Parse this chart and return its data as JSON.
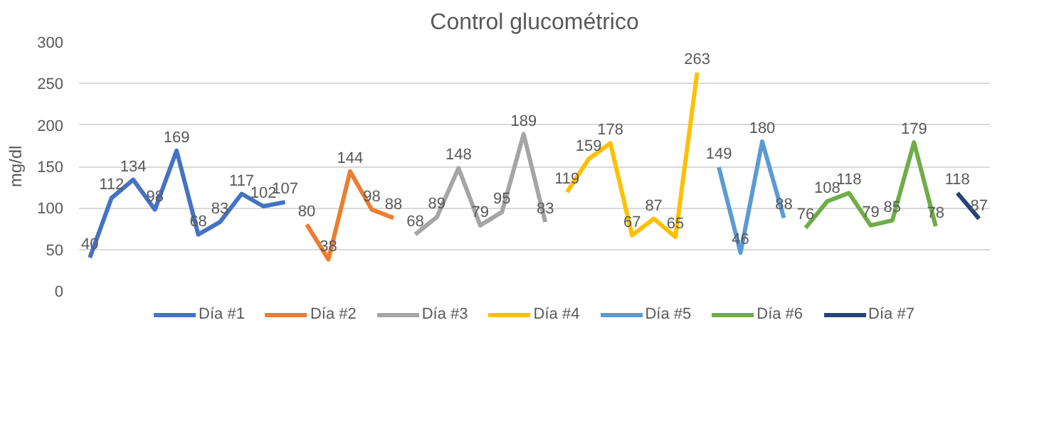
{
  "chart_data": {
    "type": "line",
    "title": "Control glucométrico",
    "ylabel": "mg/dl",
    "categories": [
      null,
      null,
      null,
      null,
      null,
      null,
      null,
      null,
      null,
      null,
      null,
      null,
      null,
      null,
      null,
      null,
      null,
      null,
      null,
      null,
      null,
      null,
      null,
      null,
      null,
      null,
      null,
      null,
      null,
      null,
      null,
      null,
      null,
      null,
      null,
      null,
      null,
      null,
      null,
      null,
      null,
      null
    ],
    "series": [
      {
        "name": "Día #1",
        "color": "#4472c4",
        "values": [
          40,
          112,
          134,
          98,
          169,
          68,
          83,
          117,
          102,
          107,
          null,
          null,
          null,
          null,
          null,
          null,
          null,
          null,
          null,
          null,
          null,
          null,
          null,
          null,
          null,
          null,
          null,
          null,
          null,
          null,
          null,
          null,
          null,
          null,
          null,
          null,
          null,
          null,
          null,
          null,
          null,
          null
        ]
      },
      {
        "name": "Día #2",
        "color": "#ed7d31",
        "values": [
          null,
          null,
          null,
          null,
          null,
          null,
          null,
          null,
          null,
          null,
          80,
          38,
          144,
          98,
          88,
          null,
          null,
          null,
          null,
          null,
          null,
          null,
          null,
          null,
          null,
          null,
          null,
          null,
          null,
          null,
          null,
          null,
          null,
          null,
          null,
          null,
          null,
          null,
          null,
          null,
          null,
          null
        ]
      },
      {
        "name": "Día #3",
        "color": "#a5a5a5",
        "values": [
          null,
          null,
          null,
          null,
          null,
          null,
          null,
          null,
          null,
          null,
          null,
          null,
          null,
          null,
          null,
          68,
          89,
          148,
          79,
          95,
          189,
          83,
          null,
          null,
          null,
          null,
          null,
          null,
          null,
          null,
          null,
          null,
          null,
          null,
          null,
          null,
          null,
          null,
          null,
          null,
          null,
          null
        ]
      },
      {
        "name": "Día #4",
        "color": "#ffc000",
        "values": [
          null,
          null,
          null,
          null,
          null,
          null,
          null,
          null,
          null,
          null,
          null,
          null,
          null,
          null,
          null,
          null,
          null,
          null,
          null,
          null,
          null,
          null,
          119,
          159,
          178,
          67,
          87,
          65,
          263,
          null,
          null,
          null,
          null,
          null,
          null,
          null,
          null,
          null,
          null,
          null,
          null,
          null
        ]
      },
      {
        "name": "Día #5",
        "color": "#5b9bd5",
        "values": [
          null,
          null,
          null,
          null,
          null,
          null,
          null,
          null,
          null,
          null,
          null,
          null,
          null,
          null,
          null,
          null,
          null,
          null,
          null,
          null,
          null,
          null,
          null,
          null,
          null,
          null,
          null,
          null,
          null,
          149,
          46,
          180,
          88,
          null,
          null,
          null,
          null,
          null,
          null,
          null,
          null,
          null
        ]
      },
      {
        "name": "Día #6",
        "color": "#70ad47",
        "values": [
          null,
          null,
          null,
          null,
          null,
          null,
          null,
          null,
          null,
          null,
          null,
          null,
          null,
          null,
          null,
          null,
          null,
          null,
          null,
          null,
          null,
          null,
          null,
          null,
          null,
          null,
          null,
          null,
          null,
          null,
          null,
          null,
          null,
          76,
          108,
          118,
          79,
          85,
          179,
          78,
          null,
          null
        ]
      },
      {
        "name": "Día #7",
        "color": "#264478",
        "values": [
          null,
          null,
          null,
          null,
          null,
          null,
          null,
          null,
          null,
          null,
          null,
          null,
          null,
          null,
          null,
          null,
          null,
          null,
          null,
          null,
          null,
          null,
          null,
          null,
          null,
          null,
          null,
          null,
          null,
          null,
          null,
          null,
          null,
          null,
          null,
          null,
          null,
          null,
          null,
          null,
          118,
          87
        ]
      }
    ],
    "ylim": [
      0,
      300
    ],
    "yticks": [
      0,
      50,
      100,
      150,
      200,
      250,
      300
    ],
    "grid": "y",
    "legend": "bottom",
    "tick_labels": "y",
    "data_labels": true,
    "line_style": "solid",
    "marker": "none"
  }
}
